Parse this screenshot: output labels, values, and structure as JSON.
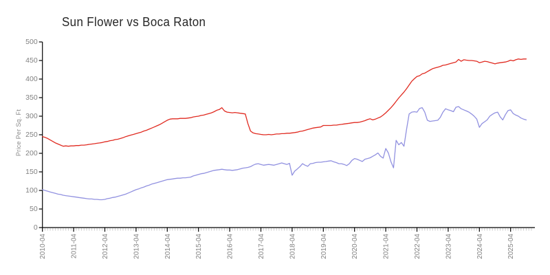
{
  "chart_data": {
    "type": "line",
    "title": "Sun Flower vs Boca Raton",
    "xlabel": "",
    "ylabel": "Price Per Sq. Ft",
    "x_unit": "month",
    "x_start": "2010-04",
    "x_end": "2025-10",
    "x_tick_labels": [
      "2010-04",
      "2011-04",
      "2012-04",
      "2013-04",
      "2014-04",
      "2015-04",
      "2016-04",
      "2017-04",
      "2018-04",
      "2019-04",
      "2020-04",
      "2021-04",
      "2022-04",
      "2023-04",
      "2024-04",
      "2025-04"
    ],
    "y_ticks": [
      0,
      50,
      100,
      150,
      200,
      250,
      300,
      350,
      400,
      450,
      500
    ],
    "ylim": [
      0,
      500
    ],
    "grid": false,
    "legend": "none",
    "colors": {
      "background": "#ffffff",
      "axis": "#000000",
      "tick_label": "#808080",
      "minor_tick": "#cbcbcb",
      "title": "#262626"
    },
    "series": [
      {
        "name": "Sun Flower",
        "color": "#e02a20",
        "values": [
          245,
          243,
          240,
          236,
          232,
          228,
          225,
          222,
          219,
          220,
          219,
          220,
          220,
          221,
          221,
          222,
          222,
          223,
          224,
          225,
          226,
          227,
          228,
          229,
          231,
          232,
          234,
          235,
          237,
          238,
          240,
          242,
          245,
          247,
          249,
          251,
          253,
          255,
          257,
          260,
          262,
          265,
          268,
          271,
          274,
          277,
          281,
          285,
          289,
          292,
          293,
          293,
          293,
          294,
          294,
          294,
          295,
          296,
          298,
          299,
          300,
          302,
          303,
          305,
          307,
          309,
          312,
          316,
          318,
          323,
          314,
          311,
          310,
          309,
          310,
          309,
          308,
          307,
          306,
          280,
          260,
          255,
          253,
          252,
          251,
          250,
          250,
          251,
          250,
          251,
          252,
          252,
          253,
          253,
          254,
          254,
          255,
          256,
          257,
          259,
          260,
          262,
          264,
          266,
          268,
          269,
          270,
          271,
          275,
          275,
          275,
          275,
          276,
          276,
          277,
          278,
          279,
          280,
          281,
          282,
          283,
          283,
          284,
          286,
          288,
          291,
          293,
          290,
          292,
          295,
          298,
          303,
          309,
          316,
          323,
          331,
          340,
          349,
          357,
          365,
          374,
          384,
          394,
          401,
          407,
          409,
          414,
          416,
          420,
          424,
          428,
          430,
          432,
          434,
          437,
          438,
          440,
          442,
          444,
          446,
          453,
          448,
          452,
          451,
          450,
          450,
          449,
          448,
          444,
          446,
          448,
          447,
          445,
          443,
          441,
          443,
          444,
          445,
          446,
          448,
          451,
          449,
          452,
          454,
          453,
          454,
          454
        ]
      },
      {
        "name": "Boca Raton",
        "color": "#9191e0",
        "values": [
          102,
          100,
          98,
          96,
          94,
          92,
          90,
          89,
          87,
          86,
          85,
          84,
          83,
          82,
          81,
          80,
          79,
          78,
          77,
          77,
          76,
          76,
          75,
          75,
          76,
          78,
          79,
          81,
          82,
          84,
          86,
          88,
          90,
          93,
          96,
          99,
          102,
          104,
          107,
          109,
          112,
          114,
          117,
          119,
          121,
          123,
          125,
          127,
          129,
          130,
          131,
          132,
          133,
          133,
          134,
          134,
          135,
          136,
          139,
          141,
          143,
          145,
          146,
          148,
          150,
          152,
          154,
          155,
          156,
          157,
          156,
          155,
          155,
          154,
          155,
          156,
          158,
          160,
          161,
          162,
          164,
          168,
          171,
          172,
          170,
          168,
          169,
          170,
          169,
          168,
          170,
          172,
          174,
          172,
          170,
          173,
          141,
          152,
          158,
          164,
          172,
          168,
          165,
          172,
          173,
          175,
          176,
          176,
          177,
          178,
          179,
          180,
          177,
          175,
          172,
          172,
          170,
          167,
          172,
          181,
          186,
          184,
          181,
          178,
          184,
          186,
          188,
          192,
          196,
          201,
          192,
          187,
          213,
          201,
          177,
          161,
          235,
          223,
          229,
          219,
          265,
          306,
          311,
          312,
          311,
          321,
          323,
          311,
          289,
          286,
          287,
          288,
          289,
          297,
          311,
          320,
          317,
          315,
          312,
          324,
          326,
          320,
          317,
          314,
          311,
          306,
          300,
          292,
          270,
          280,
          285,
          290,
          300,
          305,
          309,
          311,
          298,
          290,
          304,
          315,
          317,
          307,
          303,
          300,
          295,
          292,
          290
        ]
      }
    ]
  }
}
